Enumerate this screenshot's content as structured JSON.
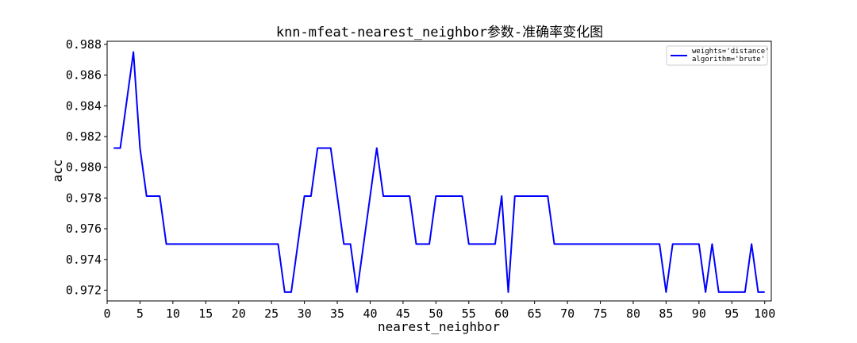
{
  "chart_data": {
    "type": "line",
    "title": "knn-mfeat-nearest_neighbor参数-准确率变化图",
    "xlabel": "nearest_neighbor",
    "ylabel": "acc",
    "xlim": [
      0,
      101
    ],
    "ylim": [
      0.9713,
      0.9882
    ],
    "x_ticks": [
      0,
      5,
      10,
      15,
      20,
      25,
      30,
      35,
      40,
      45,
      50,
      55,
      60,
      65,
      70,
      75,
      80,
      85,
      90,
      95,
      100
    ],
    "x_tick_labels": [
      "0",
      "5",
      "10",
      "15",
      "20",
      "25",
      "30",
      "35",
      "40",
      "45",
      "50",
      "55",
      "60",
      "65",
      "70",
      "75",
      "80",
      "85",
      "90",
      "95",
      "100"
    ],
    "y_ticks": [
      0.972,
      0.974,
      0.976,
      0.978,
      0.98,
      0.982,
      0.984,
      0.986,
      0.988
    ],
    "y_tick_labels": [
      "0.972",
      "0.974",
      "0.976",
      "0.978",
      "0.980",
      "0.982",
      "0.984",
      "0.986",
      "0.988"
    ],
    "grid": false,
    "legend_position": "top-right",
    "series": [
      {
        "name": "weights='distance'\nalgorithm='brute'",
        "color": "#0000ff",
        "x": [
          1,
          2,
          3,
          4,
          5,
          6,
          7,
          8,
          9,
          10,
          11,
          12,
          13,
          14,
          15,
          16,
          17,
          18,
          19,
          20,
          21,
          22,
          23,
          24,
          25,
          26,
          27,
          28,
          29,
          30,
          31,
          32,
          33,
          34,
          35,
          36,
          37,
          38,
          39,
          40,
          41,
          42,
          43,
          44,
          45,
          46,
          47,
          48,
          49,
          50,
          51,
          52,
          53,
          54,
          55,
          56,
          57,
          58,
          59,
          60,
          61,
          62,
          63,
          64,
          65,
          66,
          67,
          68,
          69,
          70,
          71,
          72,
          73,
          74,
          75,
          76,
          77,
          78,
          79,
          80,
          81,
          82,
          83,
          84,
          85,
          86,
          87,
          88,
          89,
          90,
          91,
          92,
          93,
          94,
          95,
          96,
          97,
          98,
          99,
          100
        ],
        "y": [
          0.98125,
          0.98125,
          0.984375,
          0.9875,
          0.98125,
          0.978125,
          0.978125,
          0.978125,
          0.975,
          0.975,
          0.975,
          0.975,
          0.975,
          0.975,
          0.975,
          0.975,
          0.975,
          0.975,
          0.975,
          0.975,
          0.975,
          0.975,
          0.975,
          0.975,
          0.975,
          0.975,
          0.971875,
          0.971875,
          0.975,
          0.978125,
          0.978125,
          0.98125,
          0.98125,
          0.98125,
          0.978125,
          0.975,
          0.975,
          0.971875,
          0.975,
          0.978125,
          0.98125,
          0.978125,
          0.978125,
          0.978125,
          0.978125,
          0.978125,
          0.975,
          0.975,
          0.975,
          0.978125,
          0.978125,
          0.978125,
          0.978125,
          0.978125,
          0.975,
          0.975,
          0.975,
          0.975,
          0.975,
          0.978125,
          0.971875,
          0.978125,
          0.978125,
          0.978125,
          0.978125,
          0.978125,
          0.978125,
          0.975,
          0.975,
          0.975,
          0.975,
          0.975,
          0.975,
          0.975,
          0.975,
          0.975,
          0.975,
          0.975,
          0.975,
          0.975,
          0.975,
          0.975,
          0.975,
          0.975,
          0.971875,
          0.975,
          0.975,
          0.975,
          0.975,
          0.975,
          0.971875,
          0.975,
          0.971875,
          0.971875,
          0.971875,
          0.971875,
          0.971875,
          0.975,
          0.971875,
          0.971875
        ]
      }
    ]
  }
}
